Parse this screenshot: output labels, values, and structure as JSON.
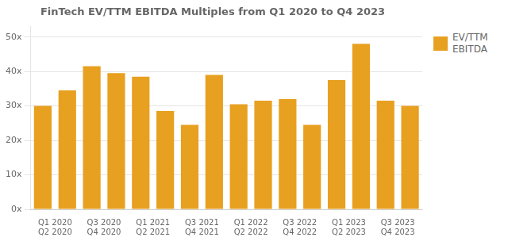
{
  "chart_data": {
    "type": "bar",
    "title": "FinTech EV/TTM EBITDA Multiples from Q1 2020 to Q4 2023",
    "categories": [
      "Q1 2020\nQ2 2020",
      null,
      "Q3 2020\nQ4 2020",
      null,
      "Q1 2021\nQ2 2021",
      null,
      "Q3 2021\nQ4 2021",
      null,
      "Q1 2022\nQ2 2022",
      null,
      "Q3 2022\nQ4 2022",
      null,
      "Q1 2023\nQ2 2023",
      null,
      "Q3 2023\nQ4 2023",
      null
    ],
    "series": [
      {
        "name": "EV/TTM\nEBITDA",
        "color": "#E8A020",
        "values": [
          30.0,
          34.5,
          41.5,
          39.5,
          38.5,
          28.5,
          24.5,
          39.0,
          30.5,
          31.5,
          32.0,
          24.5,
          37.5,
          48.0,
          31.5,
          30.0
        ]
      }
    ],
    "ylim": [
      0,
      53
    ],
    "yticks": [
      {
        "value": 0,
        "label": "0x"
      },
      {
        "value": 10,
        "label": "10x"
      },
      {
        "value": 20,
        "label": "20x"
      },
      {
        "value": 30,
        "label": "30x"
      },
      {
        "value": 40,
        "label": "40x"
      },
      {
        "value": 50,
        "label": "50x"
      }
    ],
    "grid": true,
    "legend": "upper right"
  }
}
